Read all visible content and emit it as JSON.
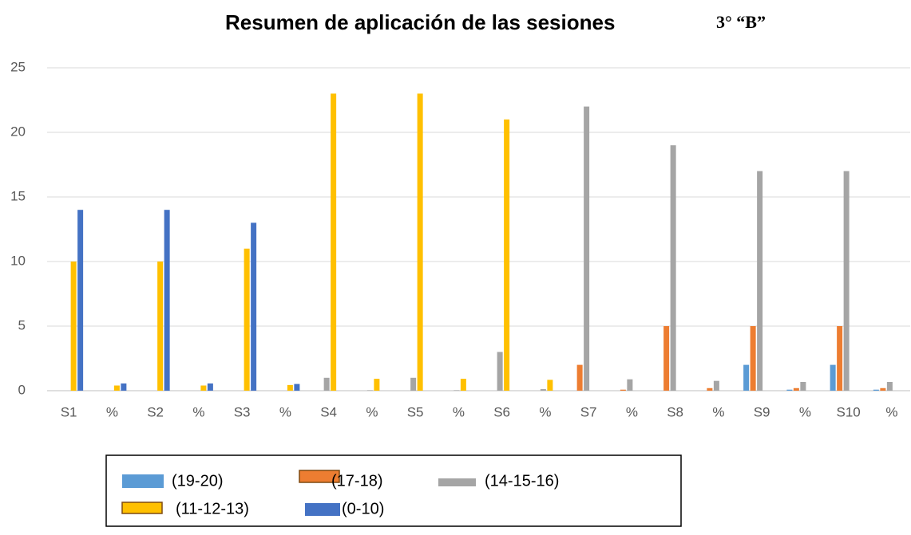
{
  "chart_data": {
    "type": "bar",
    "title": [
      "Resumen de aplicación de las sesiones",
      "3° “B”"
    ],
    "categories": [
      "S1",
      "%",
      "S2",
      "%",
      "S3",
      "%",
      "S4",
      "%",
      "S5",
      "%",
      "S6",
      "%",
      "S7",
      "%",
      "S8",
      "%",
      "S9",
      "%",
      "S10",
      "%"
    ],
    "series": [
      {
        "name": "(19-20)",
        "color": "#5b9bd5",
        "values": [
          0,
          0,
          0,
          0,
          0,
          0,
          0,
          0,
          0,
          0,
          0,
          0,
          0,
          0,
          0,
          0,
          2,
          0.08,
          2,
          0.08
        ]
      },
      {
        "name": "(17-18)",
        "color": "#ed7d31",
        "values": [
          0,
          0,
          0,
          0,
          0,
          0,
          0,
          0,
          0,
          0,
          0,
          0,
          2,
          0.08,
          5,
          0.2,
          5,
          0.2,
          5,
          0.2
        ]
      },
      {
        "name": "(14-15-16)",
        "color": "#a5a5a5",
        "values": [
          0,
          0,
          0,
          0,
          0,
          0,
          1,
          0.04,
          1,
          0.04,
          3,
          0.12,
          22,
          0.88,
          19,
          0.76,
          17,
          0.68,
          17,
          0.68
        ]
      },
      {
        "name": "(11-12-13)",
        "color": "#ffc000",
        "values": [
          10,
          0.4,
          10,
          0.4,
          11,
          0.44,
          23,
          0.92,
          23,
          0.92,
          21,
          0.84,
          0,
          0,
          0,
          0,
          0,
          0,
          0,
          0
        ]
      },
      {
        "name": "(0-10)",
        "color": "#4472c4",
        "values": [
          14,
          0.56,
          14,
          0.56,
          13,
          0.52,
          0,
          0,
          0,
          0,
          0,
          0,
          0,
          0,
          0,
          0,
          0,
          0,
          0,
          0
        ]
      }
    ],
    "ylim": [
      0,
      25
    ],
    "yticks": [
      0,
      5,
      10,
      15,
      20,
      25
    ],
    "grid": true
  }
}
